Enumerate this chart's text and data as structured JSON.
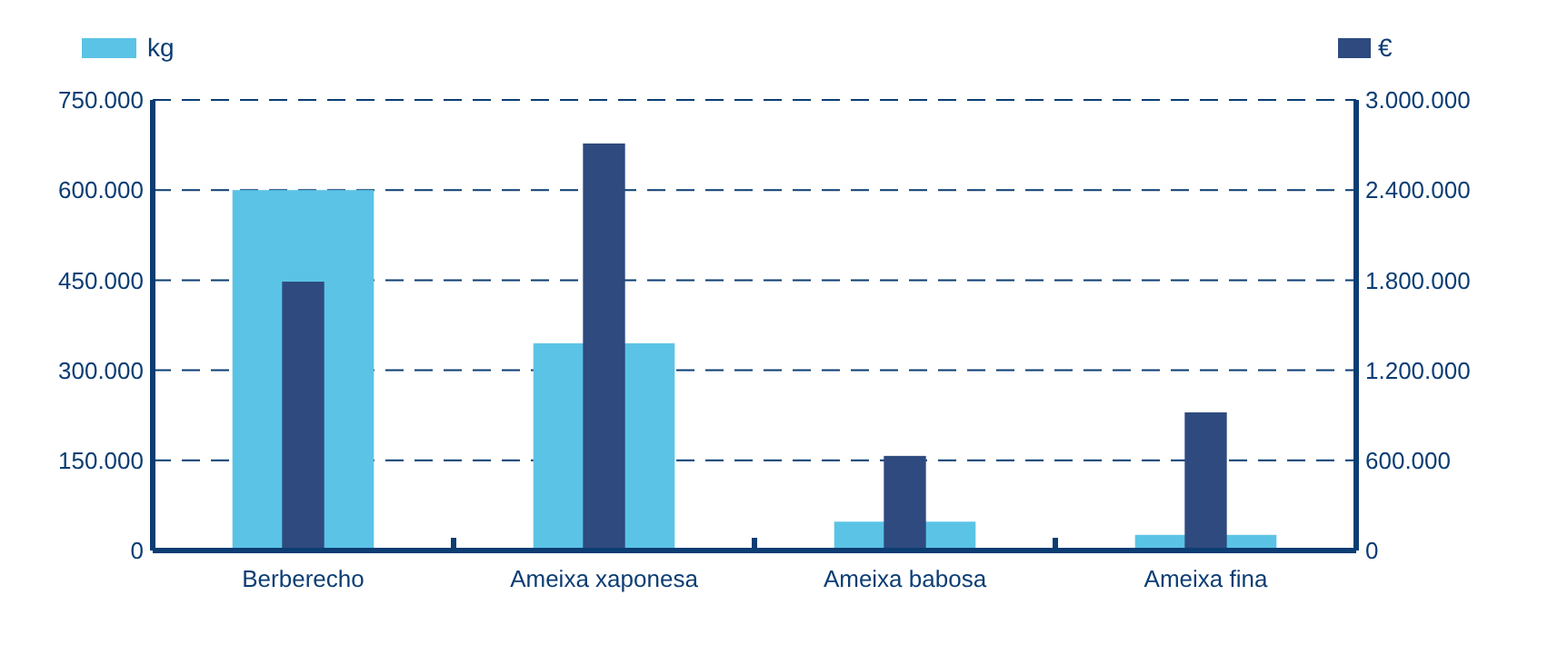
{
  "chart_data": {
    "type": "bar",
    "categories": [
      "Berberecho",
      "Ameixa xaponesa",
      "Ameixa babosa",
      "Ameixa fina"
    ],
    "series": [
      {
        "name": "kg",
        "color": "#5bc3e6",
        "values": [
          600000,
          345000,
          48000,
          26000
        ]
      },
      {
        "name": "€",
        "color": "#2e4a7e",
        "axis": "y2",
        "values": [
          1790000,
          2710000,
          630000,
          920000
        ]
      }
    ],
    "ylim": [
      0,
      750000
    ],
    "yticks": [
      0,
      {
        "value": 150000,
        "label": "150.000"
      },
      {
        "value": 300000,
        "label": "300.000"
      },
      {
        "value": 450000,
        "label": "450.000"
      },
      {
        "value": 600000,
        "label": "600.000"
      },
      {
        "value": 750000,
        "label": "750.000"
      }
    ],
    "y2lim": [
      0,
      3000000
    ],
    "y2ticks": [
      0,
      {
        "value": 600000,
        "label": "600.000"
      },
      {
        "value": 1200000,
        "label": "1.200.000"
      },
      {
        "value": 1800000,
        "label": "1.800.000"
      },
      {
        "value": 2400000,
        "label": "2.400.000"
      },
      {
        "value": 3000000,
        "label": "3.000.000"
      }
    ],
    "grid": "y",
    "legend": "top"
  }
}
